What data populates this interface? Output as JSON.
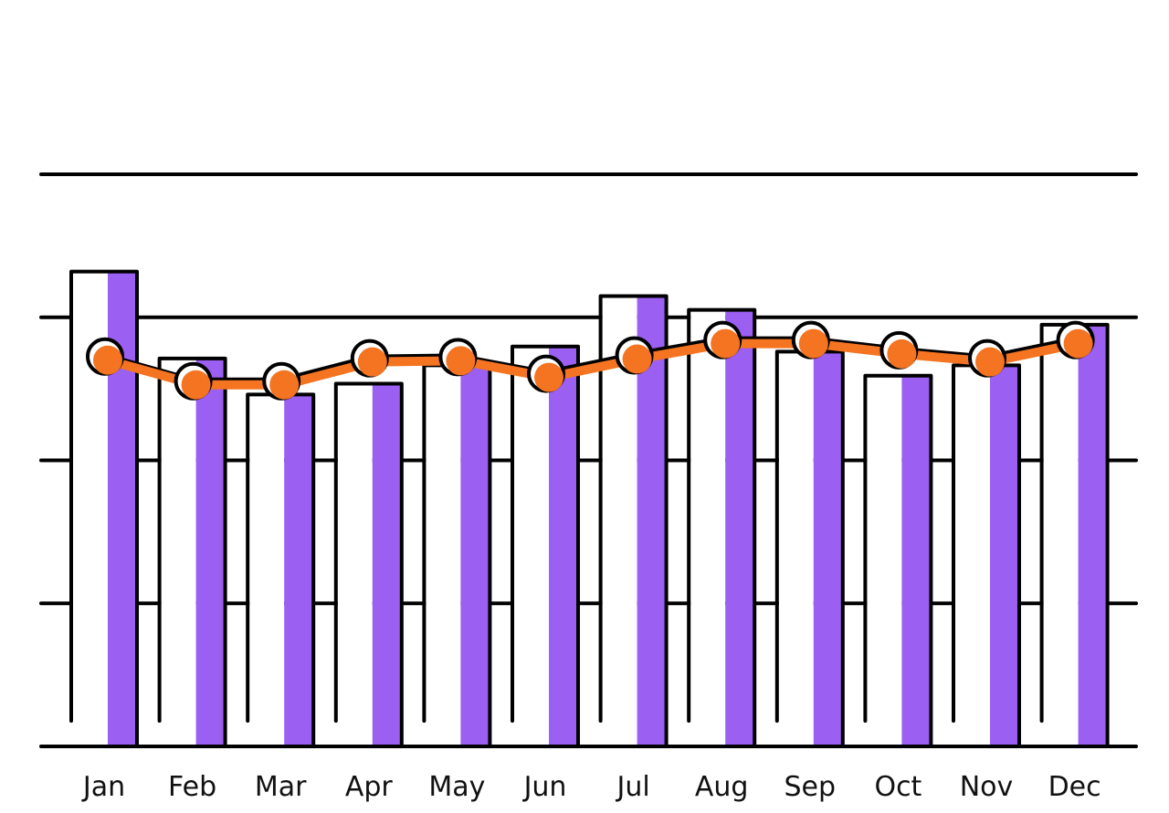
{
  "chart_data": {
    "type": "bar",
    "title": "",
    "xlabel": "",
    "ylabel": "",
    "ylim": [
      0,
      100
    ],
    "grid": true,
    "categories": [
      "Jan",
      "Feb",
      "Mar",
      "Apr",
      "May",
      "Jun",
      "Jul",
      "Aug",
      "Sep",
      "Oct",
      "Nov",
      "Dec"
    ],
    "series": [
      {
        "type": "bar",
        "values": [
          83.0,
          67.8,
          61.5,
          63.4,
          66.6,
          69.9,
          78.7,
          76.3,
          69.0,
          64.8,
          66.6,
          73.7
        ]
      },
      {
        "type": "line",
        "values": [
          67.5,
          63.2,
          63.2,
          67.2,
          67.4,
          64.5,
          67.7,
          70.4,
          70.4,
          68.6,
          67.2,
          70.4
        ]
      }
    ],
    "colors": {
      "bar_fill": "#9b5ff2",
      "bar_left": "#ffffff",
      "outline": "#000000",
      "line": "#f47421"
    }
  }
}
